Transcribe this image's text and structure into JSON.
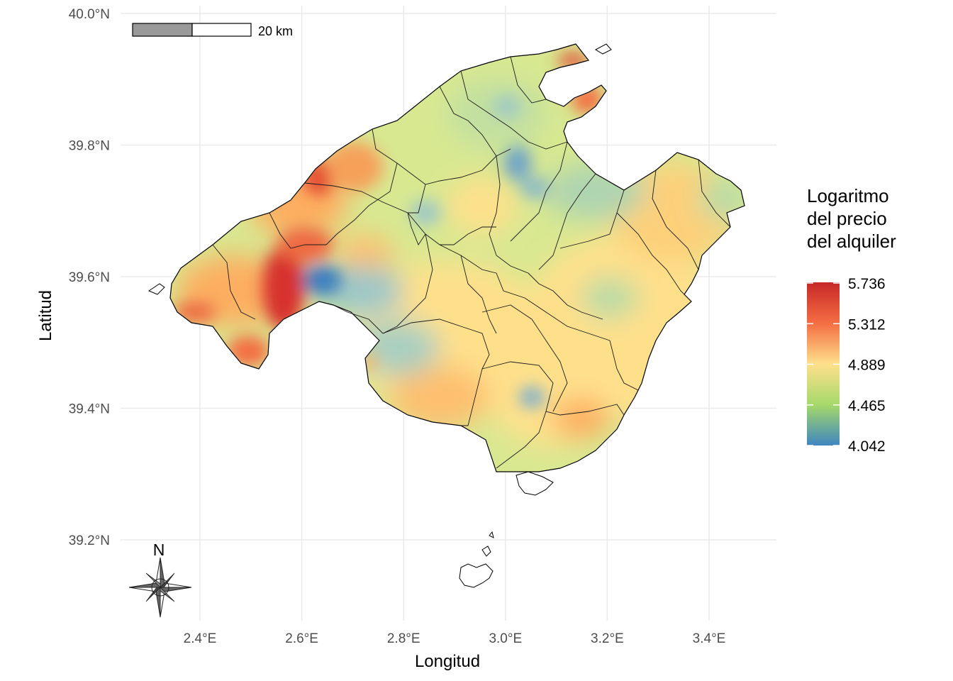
{
  "map": {
    "axes": {
      "x_title": "Longitud",
      "y_title": "Latitud",
      "x_ticks": [
        "2.4°E",
        "2.6°E",
        "2.8°E",
        "3.0°E",
        "3.2°E",
        "3.4°E"
      ],
      "y_ticks": [
        "40.0°N",
        "39.8°N",
        "39.6°N",
        "39.4°N",
        "39.2°N"
      ],
      "x_values": [
        2.4,
        2.6,
        2.8,
        3.0,
        3.2,
        3.4
      ],
      "y_values": [
        40.0,
        39.8,
        39.6,
        39.4,
        39.2
      ],
      "grid": true
    },
    "scalebar": {
      "label": "20 km"
    },
    "north_arrow": {
      "label": "N"
    },
    "legend": {
      "title_lines": [
        "Logaritmo",
        "del precio",
        "del alquiler"
      ],
      "labels": [
        "5.736",
        "5.312",
        "4.889",
        "4.465",
        "4.042"
      ],
      "values": [
        5.736,
        5.312,
        4.889,
        4.465,
        4.042
      ],
      "placement": "right",
      "colors": [
        "#d7302f",
        "#f46d43",
        "#fee08b",
        "#a6d96a",
        "#4a90c0"
      ]
    }
  }
}
